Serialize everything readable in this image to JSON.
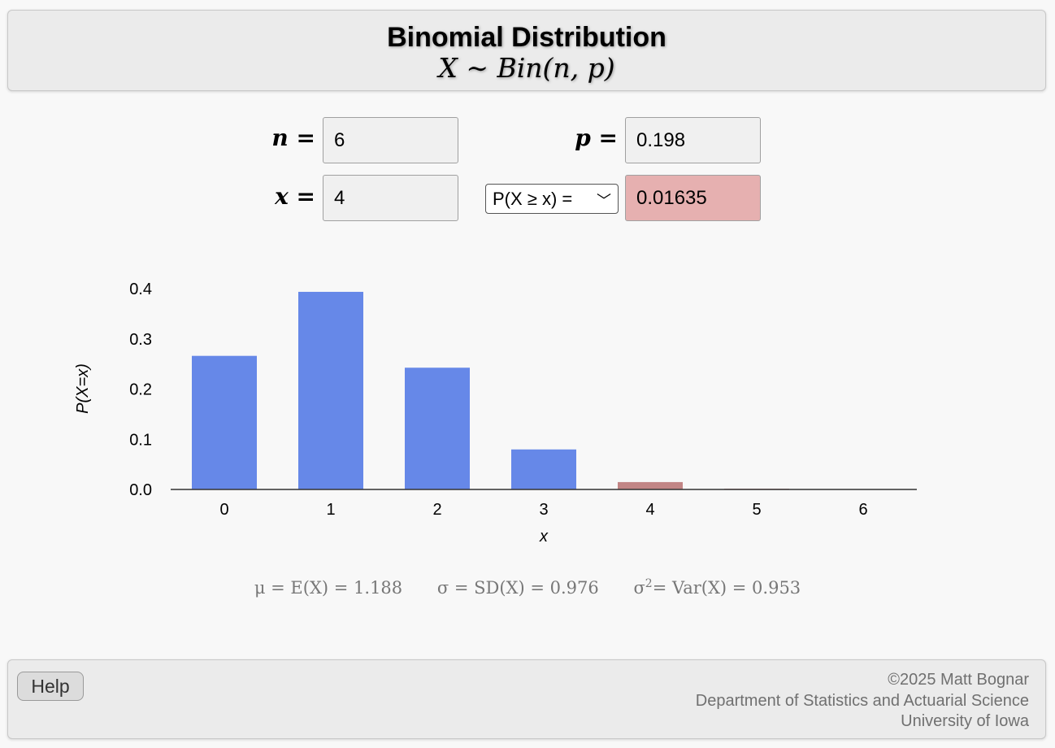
{
  "header": {
    "title": "Binomial Distribution",
    "subtitle": "X ∼ Bin(n, p)"
  },
  "inputs": {
    "n_label": "n =",
    "n_value": "6",
    "p_label": "p =",
    "p_value": "0.198",
    "x_label": "x =",
    "x_value": "4",
    "prob_type_selected": "P(X ≥ x) =",
    "result_value": "0.01635"
  },
  "colors": {
    "bar": "#6688e8",
    "highlight_bar": "#c28585",
    "result_bg": "#e6b0b0"
  },
  "chart_data": {
    "type": "bar",
    "x": [
      0,
      1,
      2,
      3,
      4,
      5,
      6
    ],
    "categories": [
      "0",
      "1",
      "2",
      "3",
      "4",
      "5",
      "6"
    ],
    "values": [
      0.2661,
      0.3936,
      0.2425,
      0.0797,
      0.0147,
      0.0015,
      0.0001
    ],
    "highlighted": [
      false,
      false,
      false,
      false,
      true,
      true,
      true
    ],
    "xlabel": "x",
    "ylabel": "P(X=x)",
    "ylim": [
      0,
      0.4
    ],
    "yticks": [
      "0.0",
      "0.1",
      "0.2",
      "0.3",
      "0.4"
    ],
    "grid": false
  },
  "stats": {
    "mean": "μ = E(X) = 1.188",
    "sd": "σ = SD(X) = 0.976",
    "var_prefix": "σ",
    "var_sup": "2",
    "var_rest": " = Var(X) = 0.953"
  },
  "footer": {
    "help_label": "Help",
    "copyright": "©2025 Matt Bognar",
    "department": "Department of Statistics and Actuarial Science",
    "university": "University of Iowa"
  }
}
